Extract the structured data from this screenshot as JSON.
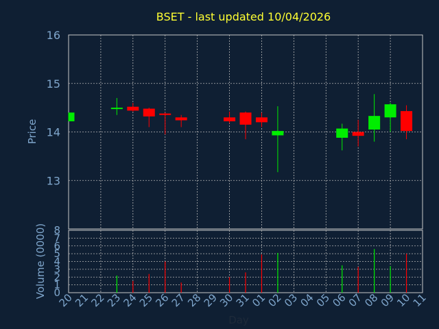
{
  "chart_data": {
    "type": "candlestick",
    "title": "BSET - last updated 10/04/2026",
    "xlabel": "Day",
    "ylabel_price": "Price",
    "ylabel_volume": "Volume (0000)",
    "price_ylim": [
      12.0,
      16.0
    ],
    "price_ticks": [
      "13",
      "14",
      "15",
      "16"
    ],
    "volume_ylim": [
      0,
      8
    ],
    "volume_ticks": [
      "0",
      "1",
      "2",
      "3",
      "4",
      "5",
      "6",
      "7",
      "8"
    ],
    "grid": true,
    "colors": {
      "background": "#0f1f33",
      "title": "#ffff33",
      "axis_text": "#7fa6cc",
      "up": "#00ee00",
      "down": "#ff0000",
      "grid": "#b8b8b8",
      "frame": "#c8c8c8"
    },
    "x_labels": [
      "20",
      "21",
      "22",
      "23",
      "24",
      "25",
      "26",
      "27",
      "28",
      "29",
      "30",
      "31",
      "01",
      "02",
      "03",
      "04",
      "05",
      "06",
      "07",
      "08",
      "09",
      "10",
      "11"
    ],
    "candles": [
      {
        "day": "20",
        "open": 14.22,
        "high": 14.4,
        "low": 14.22,
        "close": 14.4,
        "volume": 0.0
      },
      {
        "day": "23",
        "open": 14.48,
        "high": 14.7,
        "low": 14.35,
        "close": 14.5,
        "volume": 2.2
      },
      {
        "day": "24",
        "open": 14.52,
        "high": 14.6,
        "low": 14.42,
        "close": 14.44,
        "volume": 1.5
      },
      {
        "day": "25",
        "open": 14.48,
        "high": 14.5,
        "low": 14.1,
        "close": 14.32,
        "volume": 2.4
      },
      {
        "day": "26",
        "open": 14.38,
        "high": 14.4,
        "low": 13.95,
        "close": 14.35,
        "volume": 4.0
      },
      {
        "day": "27",
        "open": 14.3,
        "high": 14.35,
        "low": 14.1,
        "close": 14.24,
        "volume": 1.3
      },
      {
        "day": "30",
        "open": 14.3,
        "high": 14.42,
        "low": 14.18,
        "close": 14.22,
        "volume": 2.0
      },
      {
        "day": "31",
        "open": 14.4,
        "high": 14.42,
        "low": 13.85,
        "close": 14.15,
        "volume": 2.6
      },
      {
        "day": "01",
        "open": 14.3,
        "high": 14.4,
        "low": 14.1,
        "close": 14.2,
        "volume": 4.9
      },
      {
        "day": "02",
        "open": 13.93,
        "high": 14.53,
        "low": 13.17,
        "close": 14.02,
        "volume": 5.1
      },
      {
        "day": "06",
        "open": 13.88,
        "high": 14.17,
        "low": 13.62,
        "close": 14.07,
        "volume": 3.5
      },
      {
        "day": "07",
        "open": 14.0,
        "high": 14.25,
        "low": 13.7,
        "close": 13.92,
        "volume": 3.3
      },
      {
        "day": "08",
        "open": 14.05,
        "high": 14.78,
        "low": 13.8,
        "close": 14.33,
        "volume": 5.6
      },
      {
        "day": "09",
        "open": 14.3,
        "high": 14.6,
        "low": 14.0,
        "close": 14.57,
        "volume": 3.4
      },
      {
        "day": "10",
        "open": 14.43,
        "high": 14.55,
        "low": 13.85,
        "close": 14.02,
        "volume": 5.0
      }
    ]
  }
}
